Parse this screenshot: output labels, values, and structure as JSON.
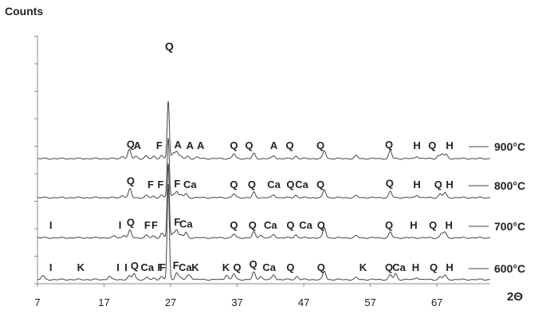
{
  "chart_data": {
    "type": "line",
    "xlabel": "2Θ",
    "ylabel": "Counts",
    "xlim": [
      7,
      75
    ],
    "xticks": [
      7,
      17,
      27,
      37,
      47,
      57,
      67
    ],
    "grid": false,
    "series": [
      {
        "name": "600°C",
        "baseline": 2,
        "peaks": [
          [
            7.8,
            8
          ],
          [
            17.8,
            7
          ],
          [
            20.8,
            7
          ],
          [
            21.5,
            13
          ],
          [
            23.5,
            4
          ],
          [
            24.5,
            3
          ],
          [
            25.6,
            6
          ],
          [
            26.64,
            200
          ],
          [
            27.9,
            15
          ],
          [
            28.5,
            4
          ],
          [
            29.6,
            8
          ],
          [
            30.0,
            7
          ],
          [
            35.4,
            10
          ],
          [
            36.5,
            12
          ],
          [
            39.5,
            15
          ],
          [
            40.5,
            7
          ],
          [
            42.5,
            10
          ],
          [
            46.0,
            7
          ],
          [
            50.1,
            18
          ],
          [
            54.9,
            4
          ],
          [
            60.0,
            10
          ],
          [
            60.8,
            12
          ],
          [
            64.0,
            5
          ],
          [
            67.5,
            6
          ],
          [
            68.2,
            9
          ]
        ],
        "labels": [
          [
            9,
            "I"
          ],
          [
            13.5,
            "K"
          ],
          [
            19.1,
            "I"
          ],
          [
            20.3,
            "I"
          ],
          [
            21.6,
            "Q"
          ],
          [
            23.5,
            "Ca"
          ],
          [
            25.5,
            "F"
          ],
          [
            25.8,
            "F"
          ],
          [
            27.8,
            "F"
          ],
          [
            29.2,
            "Ca"
          ],
          [
            30.7,
            "K"
          ],
          [
            35.3,
            "K"
          ],
          [
            37.0,
            "Q"
          ],
          [
            39.4,
            "Q"
          ],
          [
            41.8,
            "Ca"
          ],
          [
            45.0,
            "Q"
          ],
          [
            49.6,
            "Q"
          ],
          [
            55.9,
            "K"
          ],
          [
            59.8,
            "Q"
          ],
          [
            61.3,
            "Ca"
          ],
          [
            63.8,
            "H"
          ],
          [
            66.5,
            "Q"
          ],
          [
            68.9,
            "H"
          ]
        ]
      },
      {
        "name": "700°C",
        "baseline": 1,
        "peaks": [
          [
            18.6,
            4
          ],
          [
            20.0,
            6
          ],
          [
            20.9,
            15
          ],
          [
            23.4,
            5
          ],
          [
            24.4,
            4
          ],
          [
            25.7,
            9
          ],
          [
            26.64,
            155
          ],
          [
            27.4,
            10
          ],
          [
            27.9,
            17
          ],
          [
            28.6,
            6
          ],
          [
            29.3,
            11
          ],
          [
            36.5,
            8
          ],
          [
            39.5,
            12
          ],
          [
            40.5,
            6
          ],
          [
            42.5,
            7
          ],
          [
            45.8,
            6
          ],
          [
            50.1,
            21
          ],
          [
            54.9,
            4
          ],
          [
            60.0,
            12
          ],
          [
            67.7,
            9
          ],
          [
            68.2,
            11
          ]
        ],
        "labels": [
          [
            9,
            "I"
          ],
          [
            19.4,
            "I"
          ],
          [
            21.0,
            "Q"
          ],
          [
            23.5,
            "F"
          ],
          [
            24.6,
            "F"
          ],
          [
            28.0,
            "F"
          ],
          [
            29.3,
            "Ca"
          ],
          [
            36.5,
            "Q"
          ],
          [
            39.3,
            "Q"
          ],
          [
            42.0,
            "Ca"
          ],
          [
            45.0,
            "Q"
          ],
          [
            47.3,
            "Ca"
          ],
          [
            49.6,
            "Q"
          ],
          [
            59.8,
            "Q"
          ],
          [
            63.5,
            "H"
          ],
          [
            66.4,
            "Q"
          ],
          [
            68.8,
            "H"
          ]
        ]
      },
      {
        "name": "800°C",
        "baseline": 0,
        "peaks": [
          [
            19.8,
            5
          ],
          [
            20.9,
            18
          ],
          [
            23.4,
            4
          ],
          [
            24.4,
            3
          ],
          [
            25.6,
            5
          ],
          [
            26.64,
            125
          ],
          [
            27.4,
            7
          ],
          [
            27.9,
            13
          ],
          [
            28.6,
            6
          ],
          [
            29.3,
            8
          ],
          [
            36.5,
            8
          ],
          [
            39.5,
            11
          ],
          [
            42.5,
            6
          ],
          [
            45.8,
            5
          ],
          [
            50.1,
            16
          ],
          [
            54.9,
            4
          ],
          [
            60.0,
            13
          ],
          [
            64.0,
            6
          ],
          [
            67.5,
            8
          ],
          [
            68.2,
            10
          ]
        ],
        "labels": [
          [
            21.0,
            "Q"
          ],
          [
            24.0,
            "F"
          ],
          [
            25.5,
            "F"
          ],
          [
            28.0,
            "F"
          ],
          [
            29.9,
            "Ca"
          ],
          [
            36.5,
            "Q"
          ],
          [
            39.2,
            "Q"
          ],
          [
            42.5,
            "Ca"
          ],
          [
            45.0,
            "Q"
          ],
          [
            46.7,
            "Ca"
          ],
          [
            49.5,
            "Q"
          ],
          [
            59.9,
            "Q"
          ],
          [
            64.0,
            "H"
          ],
          [
            67.2,
            "Q"
          ],
          [
            68.9,
            "H"
          ]
        ]
      },
      {
        "name": "900°C",
        "baseline": 0,
        "peaks": [
          [
            19.8,
            5
          ],
          [
            20.8,
            18
          ],
          [
            21.8,
            5
          ],
          [
            23.3,
            5
          ],
          [
            24.5,
            5
          ],
          [
            25.6,
            6
          ],
          [
            26.64,
            120
          ],
          [
            27.4,
            12
          ],
          [
            27.9,
            15
          ],
          [
            28.5,
            5
          ],
          [
            29.6,
            5
          ],
          [
            31.0,
            3
          ],
          [
            36.5,
            10
          ],
          [
            39.5,
            10
          ],
          [
            42.5,
            6
          ],
          [
            45.8,
            5
          ],
          [
            50.1,
            16
          ],
          [
            54.9,
            6
          ],
          [
            60.0,
            16
          ],
          [
            64.0,
            5
          ],
          [
            67.2,
            6
          ],
          [
            67.8,
            10
          ],
          [
            68.4,
            8
          ]
        ],
        "labels": [
          [
            21.0,
            "Q"
          ],
          [
            22.0,
            "A"
          ],
          [
            25.3,
            "F"
          ],
          [
            28.1,
            "A"
          ],
          [
            29.9,
            "A"
          ],
          [
            31.5,
            "A"
          ],
          [
            36.5,
            "Q"
          ],
          [
            38.8,
            "Q"
          ],
          [
            42.5,
            "A"
          ],
          [
            44.9,
            "Q"
          ],
          [
            49.5,
            "Q"
          ],
          [
            59.8,
            "Q"
          ],
          [
            64.0,
            "H"
          ],
          [
            66.3,
            "Q"
          ],
          [
            68.9,
            "H"
          ]
        ]
      }
    ],
    "top_label": {
      "x": 26.8,
      "text": "Q"
    }
  }
}
